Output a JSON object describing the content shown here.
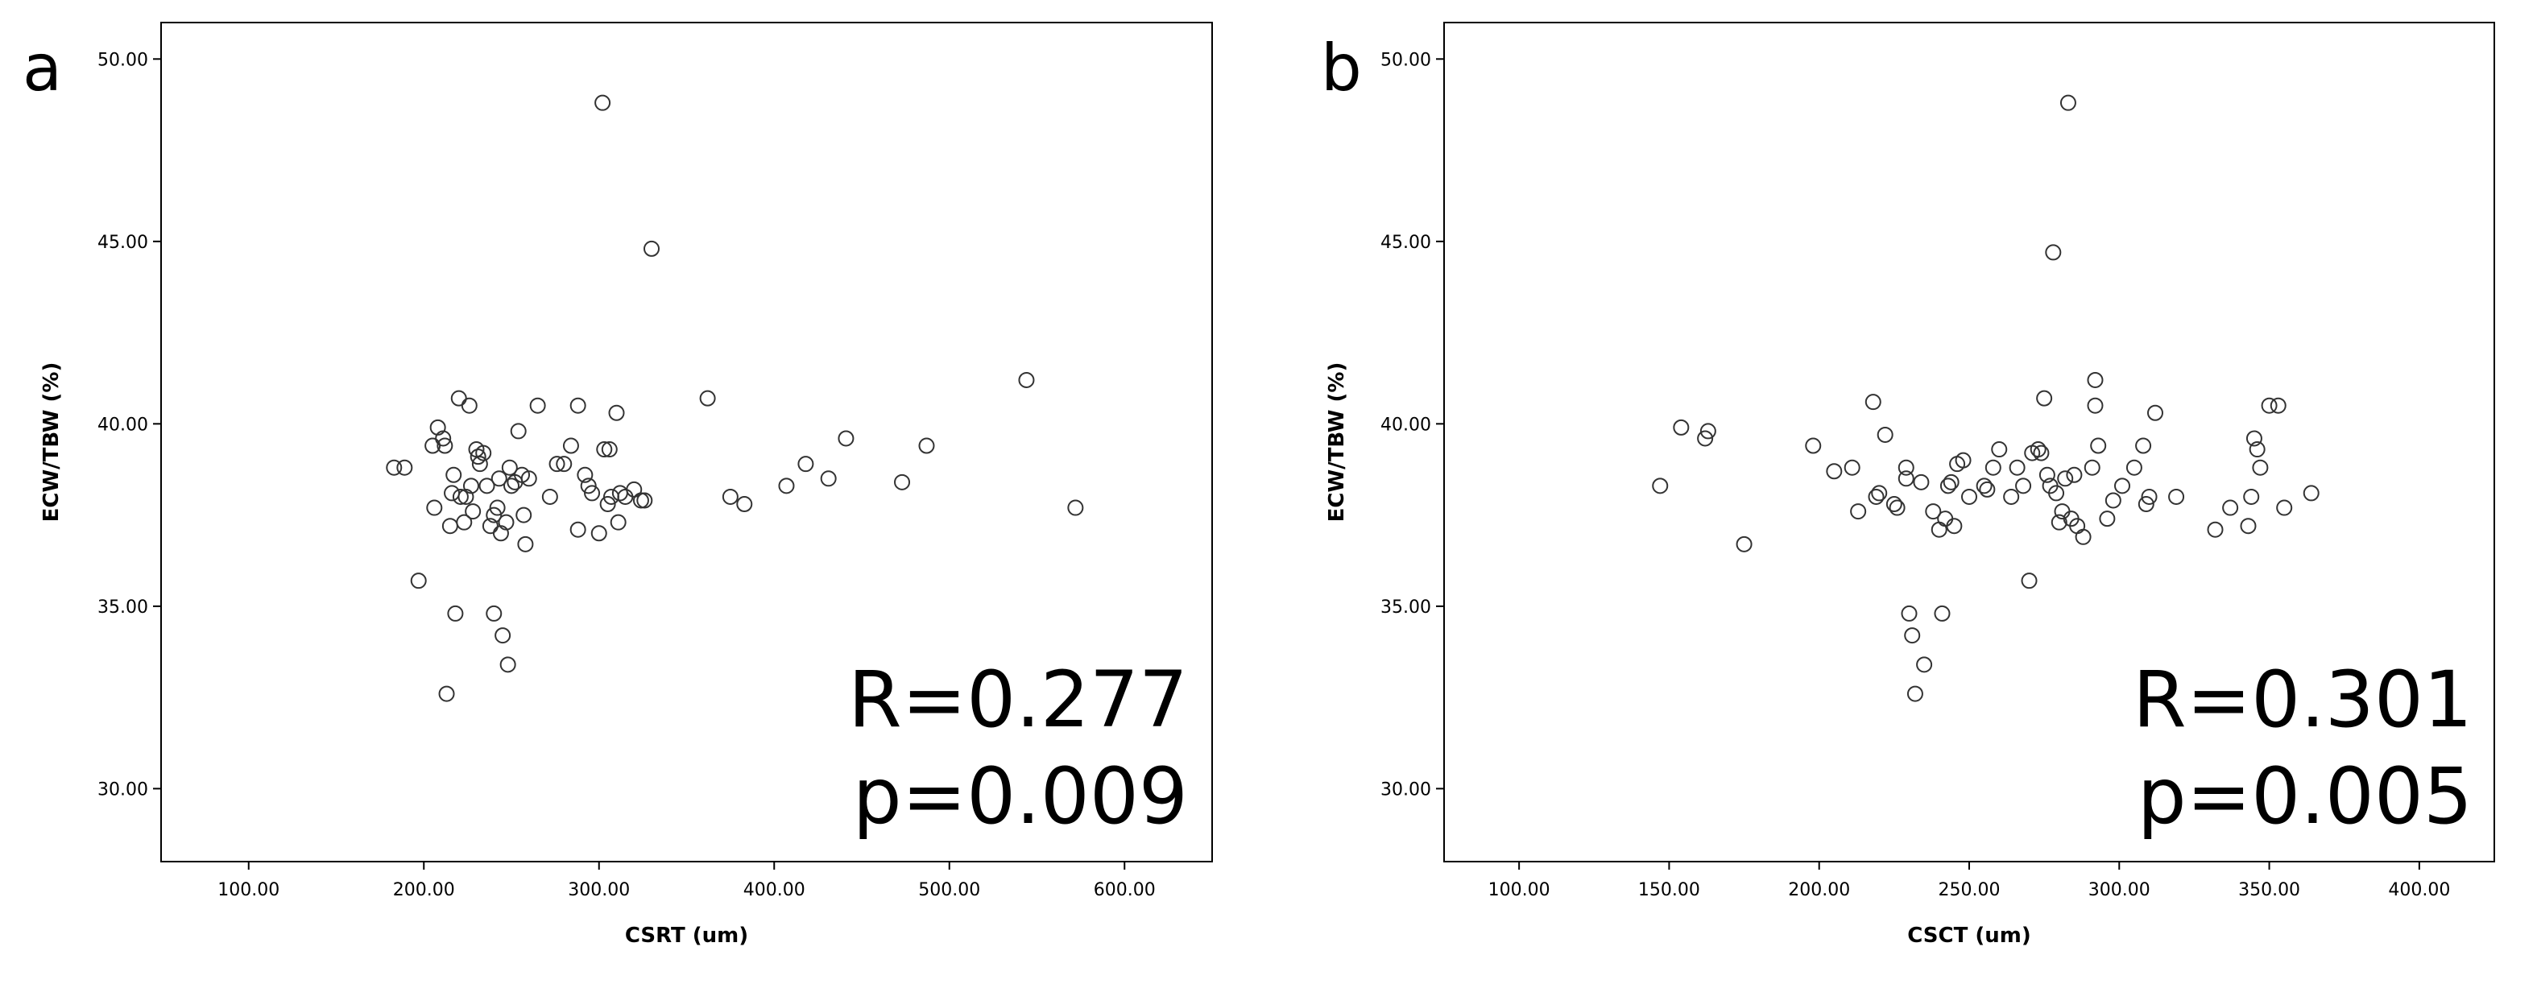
{
  "chart_data": [
    {
      "type": "scatter",
      "panel_label": "a",
      "xlabel": "CSRT (um)",
      "ylabel": "ECW/TBW (%)",
      "xlim": [
        50,
        650
      ],
      "ylim": [
        28,
        51
      ],
      "xticks": [
        100,
        200,
        300,
        400,
        500,
        600
      ],
      "yticks": [
        30,
        35,
        40,
        45,
        50
      ],
      "xtick_labels": [
        "100.00",
        "200.00",
        "300.00",
        "400.00",
        "500.00",
        "600.00"
      ],
      "ytick_labels": [
        "30.00",
        "35.00",
        "40.00",
        "45.00",
        "50.00"
      ],
      "annotation_r": "R=0.277",
      "annotation_p": "p=0.009",
      "grid": false,
      "points": [
        [
          183,
          38.8
        ],
        [
          189,
          38.8
        ],
        [
          197,
          35.7
        ],
        [
          205,
          39.4
        ],
        [
          206,
          37.7
        ],
        [
          208,
          39.9
        ],
        [
          211,
          39.6
        ],
        [
          212,
          39.4
        ],
        [
          213,
          32.6
        ],
        [
          215,
          37.2
        ],
        [
          216,
          38.1
        ],
        [
          217,
          38.6
        ],
        [
          218,
          34.8
        ],
        [
          220,
          40.7
        ],
        [
          221,
          38.0
        ],
        [
          223,
          37.3
        ],
        [
          224,
          38.0
        ],
        [
          226,
          40.5
        ],
        [
          227,
          38.3
        ],
        [
          228,
          37.6
        ],
        [
          230,
          39.3
        ],
        [
          231,
          39.1
        ],
        [
          232,
          38.9
        ],
        [
          234,
          39.2
        ],
        [
          236,
          38.3
        ],
        [
          238,
          37.2
        ],
        [
          240,
          37.5
        ],
        [
          240,
          34.8
        ],
        [
          242,
          37.7
        ],
        [
          243,
          38.5
        ],
        [
          244,
          37.0
        ],
        [
          245,
          34.2
        ],
        [
          247,
          37.3
        ],
        [
          248,
          33.4
        ],
        [
          249,
          38.8
        ],
        [
          250,
          38.3
        ],
        [
          252,
          38.4
        ],
        [
          254,
          39.8
        ],
        [
          256,
          38.6
        ],
        [
          257,
          37.5
        ],
        [
          258,
          36.7
        ],
        [
          260,
          38.5
        ],
        [
          265,
          40.5
        ],
        [
          272,
          38.0
        ],
        [
          276,
          38.9
        ],
        [
          280,
          38.9
        ],
        [
          284,
          39.4
        ],
        [
          288,
          40.5
        ],
        [
          288,
          37.1
        ],
        [
          292,
          38.6
        ],
        [
          294,
          38.3
        ],
        [
          296,
          38.1
        ],
        [
          300,
          37.0
        ],
        [
          302,
          48.8
        ],
        [
          303,
          39.3
        ],
        [
          305,
          37.8
        ],
        [
          306,
          39.3
        ],
        [
          307,
          38.0
        ],
        [
          310,
          40.3
        ],
        [
          311,
          37.3
        ],
        [
          312,
          38.1
        ],
        [
          315,
          38.0
        ],
        [
          320,
          38.2
        ],
        [
          324,
          37.9
        ],
        [
          326,
          37.9
        ],
        [
          330,
          44.8
        ],
        [
          362,
          40.7
        ],
        [
          375,
          38.0
        ],
        [
          383,
          37.8
        ],
        [
          407,
          38.3
        ],
        [
          418,
          38.9
        ],
        [
          431,
          38.5
        ],
        [
          441,
          39.6
        ],
        [
          473,
          38.4
        ],
        [
          487,
          39.4
        ],
        [
          544,
          41.2
        ],
        [
          572,
          37.7
        ]
      ]
    },
    {
      "type": "scatter",
      "panel_label": "b",
      "xlabel": "CSCT (um)",
      "ylabel": "ECW/TBW (%)",
      "xlim": [
        75,
        425
      ],
      "ylim": [
        28,
        51
      ],
      "xticks": [
        100,
        150,
        200,
        250,
        300,
        350,
        400
      ],
      "yticks": [
        30,
        35,
        40,
        45,
        50
      ],
      "xtick_labels": [
        "100.00",
        "150.00",
        "200.00",
        "250.00",
        "300.00",
        "350.00",
        "400.00"
      ],
      "ytick_labels": [
        "30.00",
        "35.00",
        "40.00",
        "45.00",
        "50.00"
      ],
      "annotation_r": "R=0.301",
      "annotation_p": "p=0.005",
      "grid": false,
      "points": [
        [
          147,
          38.3
        ],
        [
          154,
          39.9
        ],
        [
          162,
          39.6
        ],
        [
          163,
          39.8
        ],
        [
          175,
          36.7
        ],
        [
          198,
          39.4
        ],
        [
          205,
          38.7
        ],
        [
          211,
          38.8
        ],
        [
          213,
          37.6
        ],
        [
          218,
          40.6
        ],
        [
          219,
          38.0
        ],
        [
          220,
          38.1
        ],
        [
          222,
          39.7
        ],
        [
          225,
          37.8
        ],
        [
          226,
          37.7
        ],
        [
          229,
          38.5
        ],
        [
          229,
          38.8
        ],
        [
          230,
          34.8
        ],
        [
          231,
          34.2
        ],
        [
          232,
          32.6
        ],
        [
          234,
          38.4
        ],
        [
          235,
          33.4
        ],
        [
          238,
          37.6
        ],
        [
          240,
          37.1
        ],
        [
          241,
          34.8
        ],
        [
          242,
          37.4
        ],
        [
          243,
          38.3
        ],
        [
          244,
          38.4
        ],
        [
          245,
          37.2
        ],
        [
          246,
          38.9
        ],
        [
          248,
          39.0
        ],
        [
          250,
          38.0
        ],
        [
          255,
          38.3
        ],
        [
          256,
          38.2
        ],
        [
          258,
          38.8
        ],
        [
          260,
          39.3
        ],
        [
          264,
          38.0
        ],
        [
          266,
          38.8
        ],
        [
          268,
          38.3
        ],
        [
          270,
          35.7
        ],
        [
          271,
          39.2
        ],
        [
          273,
          39.3
        ],
        [
          274,
          39.2
        ],
        [
          275,
          40.7
        ],
        [
          276,
          38.6
        ],
        [
          277,
          38.3
        ],
        [
          278,
          44.7
        ],
        [
          279,
          38.1
        ],
        [
          280,
          37.3
        ],
        [
          281,
          37.6
        ],
        [
          282,
          38.5
        ],
        [
          283,
          48.8
        ],
        [
          284,
          37.4
        ],
        [
          285,
          38.6
        ],
        [
          286,
          37.2
        ],
        [
          288,
          36.9
        ],
        [
          291,
          38.8
        ],
        [
          292,
          41.2
        ],
        [
          292,
          40.5
        ],
        [
          293,
          39.4
        ],
        [
          296,
          37.4
        ],
        [
          298,
          37.9
        ],
        [
          301,
          38.3
        ],
        [
          305,
          38.8
        ],
        [
          308,
          39.4
        ],
        [
          309,
          37.8
        ],
        [
          310,
          38.0
        ],
        [
          312,
          40.3
        ],
        [
          319,
          38.0
        ],
        [
          332,
          37.1
        ],
        [
          337,
          37.7
        ],
        [
          343,
          37.2
        ],
        [
          344,
          38.0
        ],
        [
          345,
          39.6
        ],
        [
          346,
          39.3
        ],
        [
          347,
          38.8
        ],
        [
          350,
          40.5
        ],
        [
          353,
          40.5
        ],
        [
          355,
          37.7
        ],
        [
          364,
          38.1
        ]
      ]
    }
  ]
}
